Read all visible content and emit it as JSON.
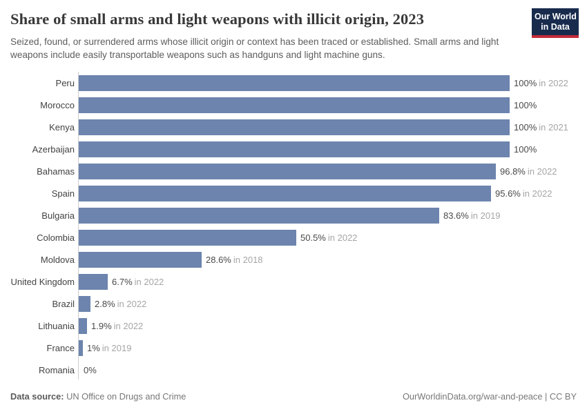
{
  "header": {
    "title": "Share of small arms and light weapons with illicit origin, 2023",
    "subtitle": "Seized, found, or surrendered arms whose illicit origin or context has been traced or established. Small arms and light weapons include easily transportable weapons such as handguns and light machine guns.",
    "logo": {
      "line1": "Our World",
      "line2": "in Data",
      "background_color": "#182b4d",
      "accent_color": "#c52b39"
    }
  },
  "chart_data": {
    "type": "bar",
    "orientation": "horizontal",
    "title": "Share of small arms and light weapons with illicit origin, 2023",
    "unit": "%",
    "xlim": [
      0,
      100
    ],
    "grid": false,
    "legend": "none",
    "bar_color": "#6c84ae",
    "axis_color": "#cccccc",
    "categories": [
      "Peru",
      "Morocco",
      "Kenya",
      "Azerbaijan",
      "Bahamas",
      "Spain",
      "Bulgaria",
      "Colombia",
      "Moldova",
      "United Kingdom",
      "Brazil",
      "Lithuania",
      "France",
      "Romania"
    ],
    "values": [
      100,
      100,
      100,
      100,
      96.8,
      95.6,
      83.6,
      50.5,
      28.6,
      6.7,
      2.8,
      1.9,
      1,
      0
    ],
    "rows": [
      {
        "country": "Peru",
        "value": 100,
        "label": "100%",
        "note": "in 2022"
      },
      {
        "country": "Morocco",
        "value": 100,
        "label": "100%",
        "note": ""
      },
      {
        "country": "Kenya",
        "value": 100,
        "label": "100%",
        "note": "in 2021"
      },
      {
        "country": "Azerbaijan",
        "value": 100,
        "label": "100%",
        "note": ""
      },
      {
        "country": "Bahamas",
        "value": 96.8,
        "label": "96.8%",
        "note": "in 2022"
      },
      {
        "country": "Spain",
        "value": 95.6,
        "label": "95.6%",
        "note": "in 2022"
      },
      {
        "country": "Bulgaria",
        "value": 83.6,
        "label": "83.6%",
        "note": "in 2019"
      },
      {
        "country": "Colombia",
        "value": 50.5,
        "label": "50.5%",
        "note": "in 2022"
      },
      {
        "country": "Moldova",
        "value": 28.6,
        "label": "28.6%",
        "note": "in 2018"
      },
      {
        "country": "United Kingdom",
        "value": 6.7,
        "label": "6.7%",
        "note": "in 2022"
      },
      {
        "country": "Brazil",
        "value": 2.8,
        "label": "2.8%",
        "note": "in 2022"
      },
      {
        "country": "Lithuania",
        "value": 1.9,
        "label": "1.9%",
        "note": "in 2022"
      },
      {
        "country": "France",
        "value": 1,
        "label": "1%",
        "note": "in 2019"
      },
      {
        "country": "Romania",
        "value": 0,
        "label": "0%",
        "note": ""
      }
    ]
  },
  "footer": {
    "datasource_label": "Data source:",
    "datasource_value": " UN Office on Drugs and Crime",
    "url": "OurWorldinData.org/war-and-peace",
    "separator": " | ",
    "license": "CC BY"
  }
}
